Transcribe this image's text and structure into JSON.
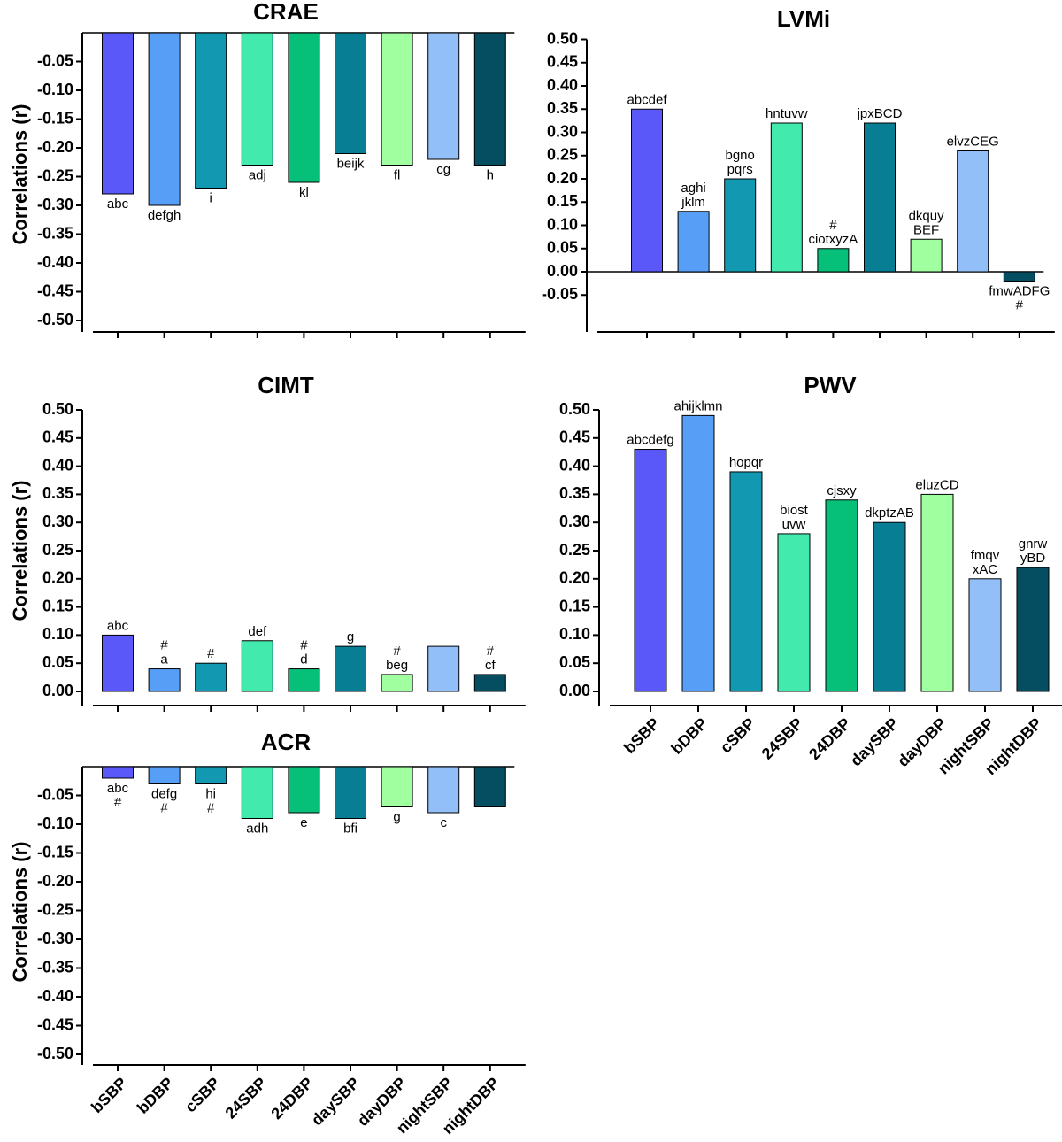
{
  "categories": [
    "bSBP",
    "bDBP",
    "cSBP",
    "24SBP",
    "24DBP",
    "daySBP",
    "dayDBP",
    "nightSBP",
    "nightDBP"
  ],
  "colors": [
    "#5a58f8",
    "#579ef7",
    "#1298b0",
    "#42eaae",
    "#06bf78",
    "#077e94",
    "#a0ff9e",
    "#92bff7",
    "#054e61"
  ],
  "chart_data": [
    {
      "type": "bar",
      "title": "CRAE",
      "ylabel": "Correlations (r)",
      "ylim": [
        -0.5,
        0
      ],
      "values": [
        -0.28,
        -0.3,
        -0.27,
        -0.23,
        -0.26,
        -0.21,
        -0.23,
        -0.22,
        -0.23
      ],
      "annotations": [
        [
          "abc"
        ],
        [
          "defgh"
        ],
        [
          "i"
        ],
        [
          "adj"
        ],
        [
          "kl"
        ],
        [
          "beijk"
        ],
        [
          "fl"
        ],
        [
          "cg"
        ],
        [
          "h"
        ]
      ]
    },
    {
      "type": "bar",
      "title": "LVMi",
      "ylabel": "",
      "ylim": [
        -0.05,
        0.5
      ],
      "values": [
        0.35,
        0.13,
        0.2,
        0.32,
        0.05,
        0.32,
        0.07,
        0.26,
        -0.02
      ],
      "annotations": [
        [
          "abcdef"
        ],
        [
          "aghi",
          "jklm"
        ],
        [
          "bgno",
          "pqrs"
        ],
        [
          "hntuvw"
        ],
        [
          "#",
          "ciotxyzA"
        ],
        [
          "jpxBCD"
        ],
        [
          "dkquy",
          "BEF"
        ],
        [
          "elvzCEG"
        ],
        [
          "fmwADFG",
          "#"
        ]
      ]
    },
    {
      "type": "bar",
      "title": "CIMT",
      "ylabel": "Correlations (r)",
      "ylim": [
        0,
        0.5
      ],
      "values": [
        0.1,
        0.04,
        0.05,
        0.09,
        0.04,
        0.08,
        0.03,
        0.08,
        0.03
      ],
      "annotations": [
        [
          "abc"
        ],
        [
          "#",
          "a"
        ],
        [
          "#"
        ],
        [
          "def"
        ],
        [
          "#",
          "d"
        ],
        [
          "g"
        ],
        [
          "#",
          "beg"
        ],
        [],
        [
          "#",
          "cf"
        ]
      ]
    },
    {
      "type": "bar",
      "title": "PWV",
      "ylabel": "",
      "ylim": [
        0,
        0.5
      ],
      "values": [
        0.43,
        0.49,
        0.39,
        0.28,
        0.34,
        0.3,
        0.35,
        0.2,
        0.22
      ],
      "annotations": [
        [
          "abcdefg"
        ],
        [
          "ahijklmn"
        ],
        [
          "hopqr"
        ],
        [
          "biost",
          "uvw"
        ],
        [
          "cjsxy"
        ],
        [
          "dkptzAB"
        ],
        [
          "eluzCD"
        ],
        [
          "fmqv",
          "xAC"
        ],
        [
          "gnrw",
          "yBD"
        ]
      ]
    },
    {
      "type": "bar",
      "title": "ACR",
      "ylabel": "Correlations (r)",
      "ylim": [
        -0.5,
        0
      ],
      "values": [
        -0.02,
        -0.03,
        -0.03,
        -0.09,
        -0.08,
        -0.09,
        -0.07,
        -0.08,
        -0.07
      ],
      "annotations": [
        [
          "abc",
          "#"
        ],
        [
          "defg",
          "#"
        ],
        [
          "hi",
          "#"
        ],
        [
          "adh"
        ],
        [
          "e"
        ],
        [
          "bfi"
        ],
        [
          "g"
        ],
        [
          "c"
        ],
        []
      ]
    }
  ]
}
